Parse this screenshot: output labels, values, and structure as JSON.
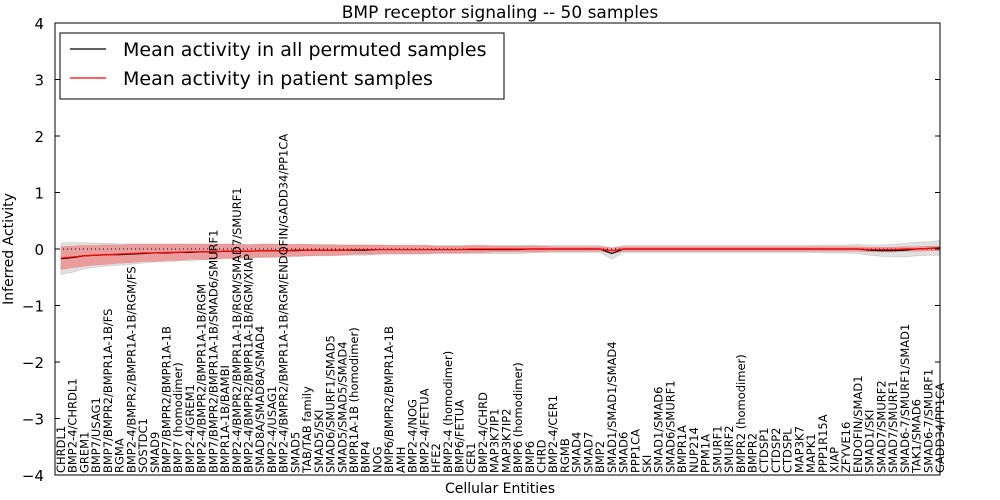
{
  "chart_data": {
    "type": "line",
    "title": "BMP receptor signaling -- 50 samples",
    "xlabel": "Cellular Entities",
    "ylabel": "Inferred Activity",
    "ylim": [
      -4,
      4
    ],
    "yticks": [
      -4,
      -3,
      -2,
      -1,
      0,
      1,
      2,
      3,
      4
    ],
    "ytick_labels": [
      "−4",
      "−3",
      "−2",
      "−1",
      "0",
      "1",
      "2",
      "3",
      "4"
    ],
    "grid": false,
    "legend_position": "top-left",
    "categories": [
      "CHRDL1",
      "BMP2-4/CHRDL1",
      "GREM1",
      "BMP7/USAG1",
      "BMP7/BMPR2/BMPR1A-1B/FS",
      "RGMA",
      "BMP2-4/BMPR2/BMPR1A-1B/RGM/FS",
      "SOSTDC1",
      "SMAD9",
      "BMP7/BMPR2/BMPR1A-1B",
      "BMP7 (homodimer)",
      "BMP2-4/GREM1",
      "BMP2-4/BMPR2/BMPR1A-1B/RGM",
      "BMP7/BMPR2/BMPR1A-1B/SMAD6/SMURF1",
      "BMPR1A-1B/BAMBI",
      "BMP2-4/BMPR2/BMPR1A-1B/RGM/SMAD7/SMURF1",
      "BMP2-4/BMPR2/BMPR1A-1B/RGM/XIAP",
      "SMAD8A/SMAD8A/SMAD4",
      "BMP2-4/USAG1",
      "BMP2-4/BMPR2/BMPR1A-1B/RGM/ENDOFIN/GADD34/PP1CA",
      "SMAD5",
      "TAB/TAB family",
      "SMAD5/SKI",
      "SMAD6/SMURF1/SMAD5",
      "SMAD5/SMAD5/SMAD4",
      "BMPR1A-1B (homodimer)",
      "BMP4",
      "NOG",
      "BMP6/BMPR2/BMPR1A-1B",
      "AMH",
      "BMP2-4/NOG",
      "BMP2-4/FETUA",
      "HFE2",
      "BMP2-4 (homodimer)",
      "BMP6/FETUA",
      "CER1",
      "BMP2-4/CHRD",
      "MAP3K7IP1",
      "MAP3K7IP2",
      "BMP6 (homodimer)",
      "BMP6",
      "CHRD",
      "BMP2-4/CER1",
      "RGMB",
      "SMAD4",
      "SMAD7",
      "BMP2",
      "SMAD1/SMAD1/SMAD4",
      "SMAD6",
      "PPP1CA",
      "SKI",
      "SMAD1/SMAD6",
      "SMAD6/SMURF1",
      "BMPR1A",
      "NUP214",
      "PPM1A",
      "SMURF1",
      "SMURF2",
      "BMPR2 (homodimer)",
      "BMPR2",
      "CTDSP1",
      "CTDSP2",
      "CTDSPL",
      "MAP3K7",
      "MAPK1",
      "PPP1R15A",
      "XIAP",
      "ZFYVE16",
      "ENDOFIN/SMAD1",
      "SMAD1/SKI",
      "SMAD7/SMURF2",
      "SMAD7/SMURF1",
      "SMAD6-7/SMURF1/SMAD1",
      "TAK1/SMAD6",
      "SMAD6-7/SMURF1",
      "GADD34/PP1CA"
    ],
    "series": [
      {
        "name": "Mean activity in all permuted samples",
        "color": "#000000",
        "band_color": "#bbbbbb",
        "values": [
          -0.17,
          -0.15,
          -0.12,
          -0.11,
          -0.1,
          -0.1,
          -0.09,
          -0.08,
          -0.07,
          -0.07,
          -0.06,
          -0.06,
          -0.05,
          -0.05,
          -0.04,
          -0.04,
          -0.04,
          -0.03,
          -0.03,
          -0.03,
          -0.03,
          -0.02,
          -0.02,
          -0.02,
          -0.02,
          -0.02,
          -0.02,
          -0.01,
          -0.01,
          -0.01,
          -0.01,
          -0.01,
          -0.01,
          -0.01,
          -0.01,
          -0.01,
          -0.01,
          -0.01,
          -0.01,
          -0.01,
          0,
          0,
          0,
          0,
          0,
          0,
          0,
          -0.08,
          0,
          0,
          0,
          0,
          0,
          0,
          0,
          0,
          0,
          0,
          0,
          0,
          0,
          0,
          0,
          0,
          0,
          0,
          0,
          0,
          0,
          -0.02,
          -0.03,
          -0.03,
          -0.02,
          0,
          0.01,
          0.02
        ],
        "band": [
          0.28,
          0.26,
          0.23,
          0.21,
          0.2,
          0.19,
          0.18,
          0.17,
          0.16,
          0.16,
          0.15,
          0.15,
          0.14,
          0.14,
          0.13,
          0.13,
          0.12,
          0.12,
          0.12,
          0.11,
          0.11,
          0.1,
          0.1,
          0.1,
          0.09,
          0.09,
          0.09,
          0.08,
          0.08,
          0.08,
          0.08,
          0.08,
          0.07,
          0.07,
          0.07,
          0.07,
          0.07,
          0.07,
          0.07,
          0.07,
          0.07,
          0.06,
          0.06,
          0.06,
          0.06,
          0.06,
          0.06,
          0.1,
          0.06,
          0.06,
          0.06,
          0.06,
          0.06,
          0.06,
          0.06,
          0.06,
          0.06,
          0.06,
          0.06,
          0.06,
          0.06,
          0.06,
          0.06,
          0.06,
          0.06,
          0.07,
          0.07,
          0.07,
          0.08,
          0.09,
          0.1,
          0.11,
          0.12,
          0.12,
          0.12,
          0.13
        ]
      },
      {
        "name": "Mean activity in patient samples",
        "color": "#ff0000",
        "band_color": "#f08080",
        "values": [
          -0.16,
          -0.14,
          -0.12,
          -0.11,
          -0.1,
          -0.09,
          -0.08,
          -0.07,
          -0.07,
          -0.06,
          -0.06,
          -0.05,
          -0.05,
          -0.05,
          -0.04,
          -0.04,
          -0.04,
          -0.03,
          -0.03,
          -0.03,
          -0.02,
          -0.02,
          -0.02,
          -0.02,
          -0.02,
          -0.01,
          -0.01,
          -0.01,
          -0.01,
          -0.01,
          -0.01,
          -0.01,
          -0.01,
          -0.01,
          -0.01,
          0,
          0,
          0,
          0,
          0,
          0,
          0,
          0,
          0,
          0,
          0,
          0,
          -0.03,
          0,
          0,
          0,
          0,
          0,
          0,
          0,
          0,
          0,
          0,
          0,
          0,
          0,
          0,
          0,
          0,
          0,
          0,
          0,
          0,
          0,
          -0.01,
          -0.01,
          -0.01,
          0,
          0,
          0.01,
          0.01
        ],
        "band": [
          0.2,
          0.19,
          0.18,
          0.17,
          0.17,
          0.16,
          0.16,
          0.15,
          0.15,
          0.14,
          0.14,
          0.13,
          0.13,
          0.13,
          0.12,
          0.12,
          0.11,
          0.11,
          0.11,
          0.1,
          0.1,
          0.1,
          0.09,
          0.09,
          0.09,
          0.08,
          0.08,
          0.08,
          0.07,
          0.07,
          0.07,
          0.07,
          0.06,
          0.06,
          0.06,
          0.06,
          0.06,
          0.05,
          0.05,
          0.05,
          0.05,
          0.05,
          0.04,
          0.04,
          0.04,
          0.04,
          0.04,
          0.05,
          0.04,
          0.04,
          0.04,
          0.04,
          0.04,
          0.04,
          0.04,
          0.04,
          0.04,
          0.04,
          0.04,
          0.04,
          0.04,
          0.04,
          0.04,
          0.04,
          0.04,
          0.04,
          0.04,
          0.04,
          0.04,
          0.04,
          0.04,
          0.04,
          0.04,
          0.04,
          0.04,
          0.04
        ]
      }
    ]
  }
}
